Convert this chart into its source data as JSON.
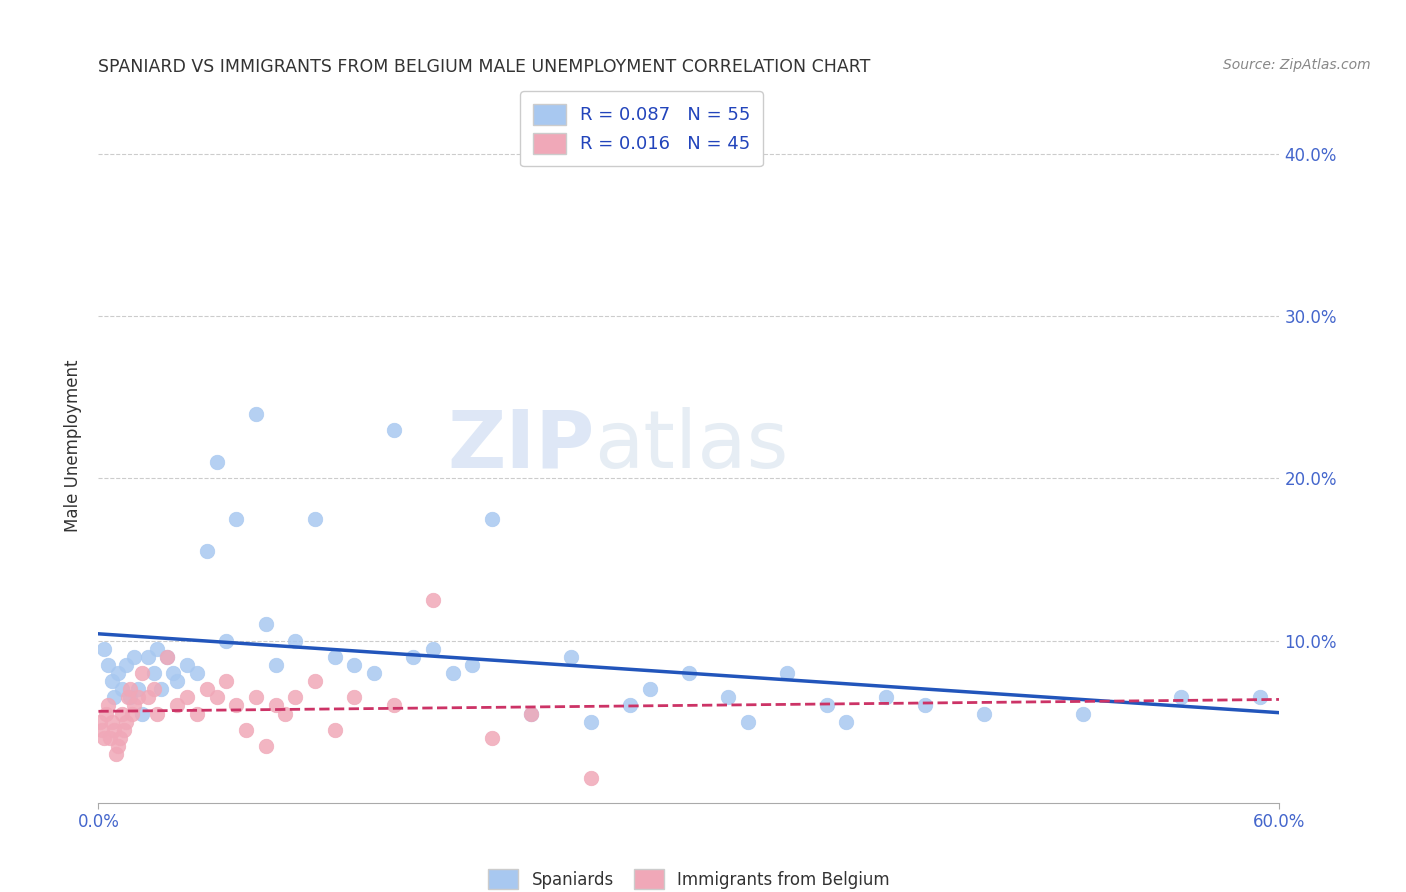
{
  "title": "SPANIARD VS IMMIGRANTS FROM BELGIUM MALE UNEMPLOYMENT CORRELATION CHART",
  "source": "Source: ZipAtlas.com",
  "ylabel": "Male Unemployment",
  "xlim": [
    0.0,
    0.6
  ],
  "ylim": [
    0.0,
    0.44
  ],
  "xticks": [
    0.0,
    0.6
  ],
  "xticklabels": [
    "0.0%",
    "60.0%"
  ],
  "yticks_left": [],
  "right_yticks": [
    0.1,
    0.2,
    0.3,
    0.4
  ],
  "right_yticklabels": [
    "10.0%",
    "20.0%",
    "30.0%",
    "40.0%"
  ],
  "spaniards_color": "#a8c8f0",
  "immigrants_color": "#f0a8b8",
  "spaniards_edge_color": "#a0b8e0",
  "immigrants_edge_color": "#e090a8",
  "spaniards_line_color": "#2255bb",
  "immigrants_line_color": "#cc3366",
  "grid_color": "#cccccc",
  "spaniards_x": [
    0.003,
    0.005,
    0.007,
    0.008,
    0.01,
    0.012,
    0.014,
    0.016,
    0.018,
    0.02,
    0.022,
    0.025,
    0.028,
    0.03,
    0.032,
    0.035,
    0.038,
    0.04,
    0.045,
    0.05,
    0.055,
    0.06,
    0.065,
    0.07,
    0.08,
    0.085,
    0.09,
    0.1,
    0.11,
    0.12,
    0.13,
    0.14,
    0.15,
    0.16,
    0.17,
    0.18,
    0.19,
    0.2,
    0.22,
    0.24,
    0.25,
    0.27,
    0.28,
    0.3,
    0.32,
    0.33,
    0.35,
    0.37,
    0.38,
    0.4,
    0.42,
    0.45,
    0.5,
    0.55,
    0.59
  ],
  "spaniards_y": [
    0.095,
    0.085,
    0.075,
    0.065,
    0.08,
    0.07,
    0.085,
    0.065,
    0.09,
    0.07,
    0.055,
    0.09,
    0.08,
    0.095,
    0.07,
    0.09,
    0.08,
    0.075,
    0.085,
    0.08,
    0.155,
    0.21,
    0.1,
    0.175,
    0.24,
    0.11,
    0.085,
    0.1,
    0.175,
    0.09,
    0.085,
    0.08,
    0.23,
    0.09,
    0.095,
    0.08,
    0.085,
    0.175,
    0.055,
    0.09,
    0.05,
    0.06,
    0.07,
    0.08,
    0.065,
    0.05,
    0.08,
    0.06,
    0.05,
    0.065,
    0.06,
    0.055,
    0.055,
    0.065,
    0.065
  ],
  "immigrants_x": [
    0.001,
    0.002,
    0.003,
    0.004,
    0.005,
    0.006,
    0.007,
    0.008,
    0.009,
    0.01,
    0.011,
    0.012,
    0.013,
    0.014,
    0.015,
    0.016,
    0.017,
    0.018,
    0.02,
    0.022,
    0.025,
    0.028,
    0.03,
    0.035,
    0.04,
    0.045,
    0.05,
    0.055,
    0.06,
    0.065,
    0.07,
    0.075,
    0.08,
    0.085,
    0.09,
    0.095,
    0.1,
    0.11,
    0.12,
    0.13,
    0.15,
    0.17,
    0.2,
    0.22,
    0.25
  ],
  "immigrants_y": [
    0.05,
    0.045,
    0.04,
    0.055,
    0.06,
    0.04,
    0.05,
    0.045,
    0.03,
    0.035,
    0.04,
    0.055,
    0.045,
    0.05,
    0.065,
    0.07,
    0.055,
    0.06,
    0.065,
    0.08,
    0.065,
    0.07,
    0.055,
    0.09,
    0.06,
    0.065,
    0.055,
    0.07,
    0.065,
    0.075,
    0.06,
    0.045,
    0.065,
    0.035,
    0.06,
    0.055,
    0.065,
    0.075,
    0.045,
    0.065,
    0.06,
    0.125,
    0.04,
    0.055,
    0.015
  ],
  "watermark_zip": "ZIP",
  "watermark_atlas": "atlas",
  "background_color": "#ffffff"
}
